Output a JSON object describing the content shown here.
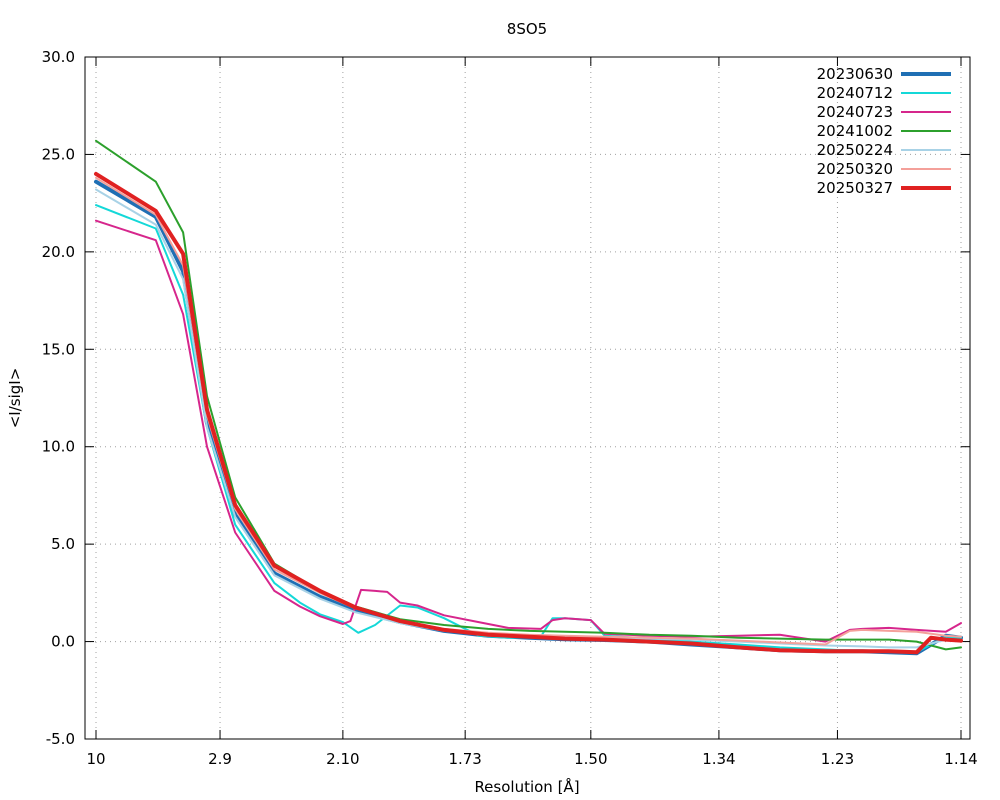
{
  "chart_data": {
    "type": "line",
    "title": "8SO5",
    "xlabel": "Resolution [Å]",
    "ylabel": "<I/sigI>",
    "ylim": [
      -5.0,
      30.0
    ],
    "grid": true,
    "legend_position": "top-right",
    "x_scale": "reciprocal-square",
    "y_ticks": [
      "-5.0",
      "0.0",
      "5.0",
      "10.0",
      "15.0",
      "20.0",
      "25.0",
      "30.0"
    ],
    "x_ticks": [
      "10",
      "2.9",
      "2.10",
      "1.73",
      "1.50",
      "1.34",
      "1.23",
      "1.14"
    ],
    "x_tick_values": [
      10,
      2.9,
      2.1,
      1.73,
      1.5,
      1.34,
      1.23,
      1.14
    ],
    "series": [
      {
        "name": "20230630",
        "color": "#1f6fb4",
        "width": 4,
        "x": [
          10,
          4.0,
          3.4,
          3.05,
          2.75,
          2.45,
          2.2,
          2.05,
          1.9,
          1.78,
          1.68,
          1.6,
          1.54,
          1.48,
          1.42,
          1.37,
          1.32,
          1.28,
          1.24,
          1.21,
          1.19,
          1.17,
          1.15,
          1.14
        ],
        "y": [
          23.6,
          21.8,
          19.0,
          11.2,
          6.5,
          3.5,
          2.3,
          1.6,
          1.0,
          0.55,
          0.3,
          0.2,
          0.12,
          0.08,
          0.0,
          -0.15,
          -0.3,
          -0.45,
          -0.5,
          -0.5,
          -0.55,
          -0.6,
          0.3,
          0.2
        ]
      },
      {
        "name": "20240712",
        "color": "#14d8d8",
        "width": 2,
        "x": [
          10,
          4.0,
          3.4,
          3.05,
          2.75,
          2.45,
          2.3,
          2.2,
          2.1,
          2.04,
          1.98,
          1.9,
          1.85,
          1.78,
          1.7,
          1.64,
          1.58,
          1.56,
          1.54,
          1.5,
          1.48,
          1.42,
          1.37,
          1.32,
          1.28,
          1.24,
          1.21,
          1.19,
          1.17,
          1.15,
          1.14
        ],
        "y": [
          22.4,
          21.2,
          17.8,
          11.0,
          6.0,
          3.0,
          2.0,
          1.4,
          1.0,
          0.45,
          0.85,
          1.85,
          1.75,
          1.2,
          0.3,
          0.2,
          0.25,
          1.2,
          1.2,
          1.1,
          0.3,
          0.15,
          0.0,
          -0.15,
          -0.3,
          -0.4,
          -0.5,
          -0.5,
          -0.55,
          0.25,
          0.2
        ]
      },
      {
        "name": "20240723",
        "color": "#d6268c",
        "width": 2,
        "x": [
          10,
          4.0,
          3.4,
          3.05,
          2.75,
          2.45,
          2.3,
          2.2,
          2.1,
          2.07,
          2.03,
          1.98,
          1.94,
          1.9,
          1.85,
          1.78,
          1.7,
          1.64,
          1.58,
          1.56,
          1.54,
          1.5,
          1.48,
          1.42,
          1.37,
          1.32,
          1.28,
          1.24,
          1.22,
          1.21,
          1.19,
          1.17,
          1.15,
          1.14
        ],
        "y": [
          21.6,
          20.6,
          16.8,
          10.0,
          5.6,
          2.6,
          1.8,
          1.3,
          0.9,
          1.05,
          2.65,
          2.6,
          2.55,
          2.0,
          1.85,
          1.35,
          1.0,
          0.7,
          0.65,
          1.1,
          1.2,
          1.1,
          0.4,
          0.3,
          0.25,
          0.3,
          0.35,
          0.0,
          0.6,
          0.65,
          0.7,
          0.6,
          0.5,
          0.95
        ]
      },
      {
        "name": "20241002",
        "color": "#2ca02c",
        "width": 2,
        "x": [
          10,
          4.0,
          3.4,
          3.05,
          2.75,
          2.45,
          2.2,
          2.05,
          1.9,
          1.78,
          1.68,
          1.6,
          1.54,
          1.48,
          1.42,
          1.37,
          1.32,
          1.28,
          1.24,
          1.21,
          1.19,
          1.17,
          1.15,
          1.14
        ],
        "y": [
          25.7,
          23.6,
          21.0,
          12.6,
          7.4,
          4.0,
          2.6,
          1.8,
          1.15,
          0.85,
          0.65,
          0.55,
          0.5,
          0.45,
          0.35,
          0.3,
          0.2,
          0.15,
          0.1,
          0.1,
          0.1,
          0.0,
          -0.4,
          -0.3
        ]
      },
      {
        "name": "20250224",
        "color": "#a8d2e6",
        "width": 2,
        "x": [
          10,
          4.0,
          3.4,
          3.05,
          2.75,
          2.45,
          2.2,
          2.05,
          1.9,
          1.78,
          1.68,
          1.6,
          1.54,
          1.48,
          1.42,
          1.37,
          1.32,
          1.28,
          1.24,
          1.21,
          1.19,
          1.17,
          1.15,
          1.14
        ],
        "y": [
          23.2,
          21.4,
          18.6,
          11.0,
          6.4,
          3.4,
          2.2,
          1.5,
          0.95,
          0.55,
          0.4,
          0.3,
          0.25,
          0.2,
          0.15,
          0.1,
          0.0,
          -0.1,
          -0.2,
          -0.25,
          -0.3,
          -0.3,
          0.1,
          0.05
        ]
      },
      {
        "name": "20250320",
        "color": "#f4a09a",
        "width": 2,
        "x": [
          10,
          4.0,
          3.4,
          3.05,
          2.75,
          2.45,
          2.2,
          2.05,
          1.9,
          1.78,
          1.68,
          1.6,
          1.54,
          1.48,
          1.42,
          1.37,
          1.32,
          1.28,
          1.24,
          1.22,
          1.21,
          1.19,
          1.17,
          1.15,
          1.14
        ],
        "y": [
          23.8,
          21.9,
          19.3,
          11.6,
          6.8,
          3.7,
          2.5,
          1.7,
          1.05,
          0.65,
          0.45,
          0.35,
          0.3,
          0.25,
          0.2,
          0.15,
          0.05,
          -0.05,
          -0.15,
          0.55,
          0.6,
          0.55,
          0.5,
          0.3,
          0.25
        ]
      },
      {
        "name": "20250327",
        "color": "#e02121",
        "width": 4,
        "x": [
          10,
          4.0,
          3.4,
          3.05,
          2.75,
          2.45,
          2.2,
          2.05,
          1.9,
          1.78,
          1.68,
          1.6,
          1.54,
          1.48,
          1.42,
          1.37,
          1.32,
          1.28,
          1.24,
          1.21,
          1.19,
          1.17,
          1.16,
          1.15,
          1.14
        ],
        "y": [
          24.0,
          22.1,
          19.9,
          11.9,
          7.0,
          3.9,
          2.6,
          1.75,
          1.05,
          0.6,
          0.35,
          0.25,
          0.15,
          0.1,
          0.0,
          -0.1,
          -0.3,
          -0.45,
          -0.5,
          -0.5,
          -0.5,
          -0.55,
          0.2,
          0.1,
          0.05
        ]
      }
    ]
  }
}
